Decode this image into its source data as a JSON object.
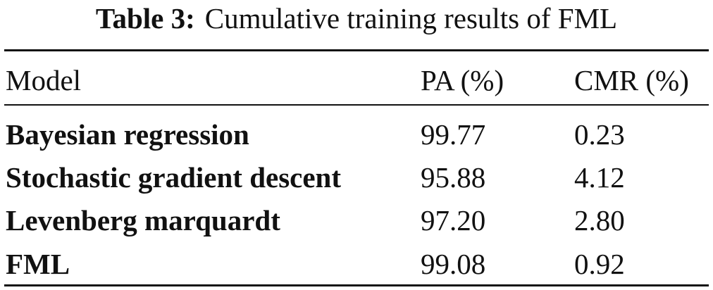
{
  "caption": {
    "label": "Table 3:",
    "text": "Cumulative training results of FML"
  },
  "table": {
    "header": [
      "Model",
      "PA (%)",
      "CMR (%)"
    ],
    "rows": [
      [
        "Bayesian regression",
        "99.77",
        "0.23"
      ],
      [
        "Stochastic gradient descent",
        "95.88",
        "4.12"
      ],
      [
        "Levenberg marquardt",
        "97.20",
        "2.80"
      ],
      [
        "FML",
        "99.08",
        "0.92"
      ]
    ]
  }
}
